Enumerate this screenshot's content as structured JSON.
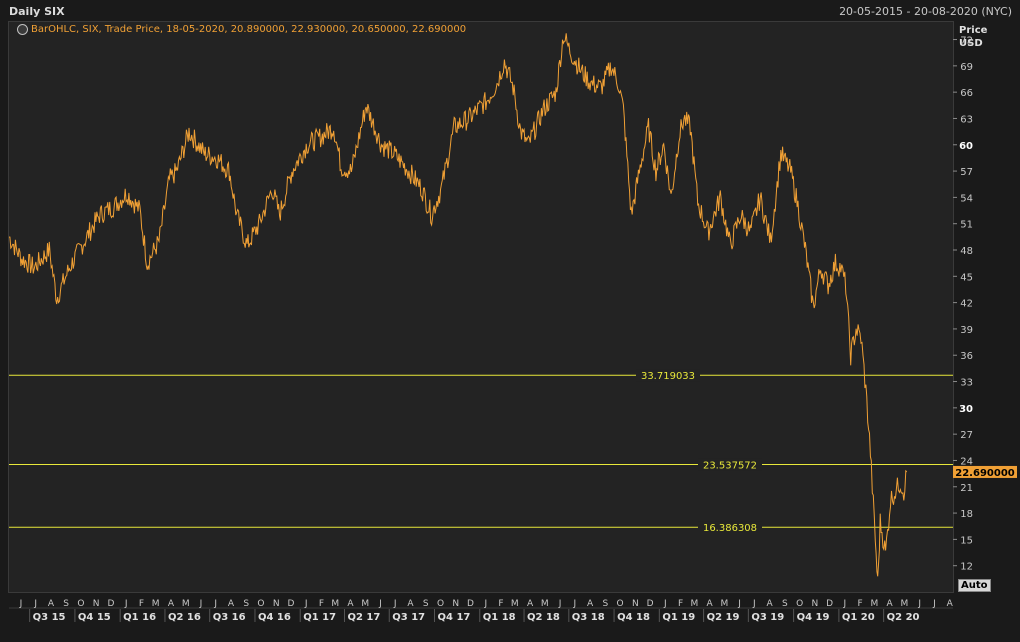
{
  "header": {
    "title": "Daily SIX",
    "date_range": "20-05-2015 - 20-08-2020 (NYC)"
  },
  "legend": {
    "text": "BarOHLC, SIX, Trade Price, 18-05-2020, 20.890000, 22.930000, 20.650000, 22.690000",
    "icon": "globe-icon"
  },
  "y_axis_header": {
    "line1": "Price",
    "line2": "USD"
  },
  "auto_button": "Auto",
  "colors": {
    "line": "#f0a035",
    "hline": "#e8e83a",
    "grid": "#2e2e2e",
    "background": "#232323",
    "last_price_bg": "#f0a035"
  },
  "chart_data": {
    "type": "line",
    "title": "Daily SIX",
    "series": [
      {
        "name": "BarOHLC, SIX, Trade Price",
        "x": [
          "2015-05-20",
          "2015-06-15",
          "2015-07-10",
          "2015-08-10",
          "2015-08-25",
          "2015-09-20",
          "2015-10-20",
          "2015-11-20",
          "2015-12-20",
          "2016-01-15",
          "2016-02-10",
          "2016-02-25",
          "2016-03-20",
          "2016-04-10",
          "2016-04-25",
          "2016-05-20",
          "2016-06-20",
          "2016-07-15",
          "2016-08-10",
          "2016-08-25",
          "2016-09-15",
          "2016-10-10",
          "2016-11-05",
          "2016-11-20",
          "2016-12-15",
          "2017-01-15",
          "2017-02-15",
          "2017-03-10",
          "2017-03-25",
          "2017-04-15",
          "2017-05-15",
          "2017-06-15",
          "2017-07-10",
          "2017-08-10",
          "2017-09-05",
          "2017-09-25",
          "2017-10-15",
          "2017-11-10",
          "2017-12-10",
          "2018-01-15",
          "2018-02-05",
          "2018-02-20",
          "2018-03-10",
          "2018-03-25",
          "2018-04-10",
          "2018-05-10",
          "2018-06-05",
          "2018-06-20",
          "2018-07-05",
          "2018-07-25",
          "2018-08-15",
          "2018-09-05",
          "2018-09-25",
          "2018-10-10",
          "2018-10-20",
          "2018-11-05",
          "2018-11-25",
          "2018-12-10",
          "2018-12-25",
          "2019-01-10",
          "2019-01-25",
          "2019-02-10",
          "2019-02-20",
          "2019-03-05",
          "2019-03-20",
          "2019-04-10",
          "2019-05-05",
          "2019-05-25",
          "2019-06-15",
          "2019-07-05",
          "2019-07-25",
          "2019-08-15",
          "2019-09-05",
          "2019-09-25",
          "2019-10-10",
          "2019-10-25",
          "2019-11-10",
          "2019-11-25",
          "2019-12-10",
          "2019-12-25",
          "2020-01-05",
          "2020-01-15",
          "2020-01-25",
          "2020-02-05",
          "2020-02-15",
          "2020-02-25",
          "2020-03-05",
          "2020-03-15",
          "2020-03-20",
          "2020-03-25",
          "2020-04-05",
          "2020-04-15",
          "2020-04-25",
          "2020-05-05",
          "2020-05-12",
          "2020-05-18"
        ],
        "y": [
          49.5,
          47.0,
          46.0,
          48.0,
          42.5,
          46.0,
          49.0,
          52.0,
          53.0,
          54.5,
          52.5,
          46.5,
          49.0,
          56.0,
          57.0,
          61.5,
          59.0,
          58.5,
          57.0,
          52.0,
          48.5,
          51.0,
          55.0,
          52.0,
          57.0,
          60.0,
          61.0,
          62.0,
          57.5,
          57.0,
          64.5,
          60.0,
          59.0,
          57.0,
          55.0,
          52.0,
          55.0,
          62.0,
          63.0,
          65.0,
          67.0,
          69.5,
          66.5,
          61.5,
          60.0,
          64.0,
          66.0,
          72.5,
          70.5,
          68.5,
          67.0,
          66.5,
          69.0,
          67.0,
          64.0,
          52.0,
          58.0,
          62.0,
          57.0,
          60.0,
          54.0,
          61.0,
          63.0,
          62.0,
          53.5,
          50.0,
          54.0,
          48.5,
          52.0,
          50.0,
          54.0,
          49.0,
          59.0,
          57.0,
          53.0,
          48.0,
          41.5,
          46.0,
          44.0,
          46.5,
          46.0,
          44.0,
          36.0,
          39.0,
          38.0,
          32.0,
          25.0,
          15.0,
          10.0,
          17.0,
          13.5,
          19.5,
          20.5,
          21.5,
          20.5,
          22.69
        ]
      }
    ],
    "horizontal_lines": [
      {
        "value": 33.719033,
        "label": "33.719033"
      },
      {
        "value": 23.537572,
        "label": "23.537572"
      },
      {
        "value": 16.386308,
        "label": "16.386308"
      }
    ],
    "last_price": {
      "value": 22.69,
      "label": "22.690000"
    },
    "ylim": [
      9,
      74
    ],
    "xlim": [
      "2015-05-20",
      "2020-08-20"
    ],
    "y_ticks": [
      12,
      15,
      18,
      21,
      24,
      27,
      30,
      33,
      36,
      39,
      42,
      45,
      48,
      51,
      54,
      57,
      60,
      63,
      66,
      69,
      72
    ],
    "y_bold_ticks": [
      30,
      60
    ],
    "month_labels": [
      {
        "date": "2015-06-01",
        "label": "J"
      },
      {
        "date": "2015-07-01",
        "label": "J"
      },
      {
        "date": "2015-08-01",
        "label": "A"
      },
      {
        "date": "2015-09-01",
        "label": "S"
      },
      {
        "date": "2015-10-01",
        "label": "O"
      },
      {
        "date": "2015-11-01",
        "label": "N"
      },
      {
        "date": "2015-12-01",
        "label": "D"
      },
      {
        "date": "2016-01-01",
        "label": "J"
      },
      {
        "date": "2016-02-01",
        "label": "F"
      },
      {
        "date": "2016-03-01",
        "label": "M"
      },
      {
        "date": "2016-04-01",
        "label": "A"
      },
      {
        "date": "2016-05-01",
        "label": "M"
      },
      {
        "date": "2016-06-01",
        "label": "J"
      },
      {
        "date": "2016-07-01",
        "label": "J"
      },
      {
        "date": "2016-08-01",
        "label": "A"
      },
      {
        "date": "2016-09-01",
        "label": "S"
      },
      {
        "date": "2016-10-01",
        "label": "O"
      },
      {
        "date": "2016-11-01",
        "label": "N"
      },
      {
        "date": "2016-12-01",
        "label": "D"
      },
      {
        "date": "2017-01-01",
        "label": "J"
      },
      {
        "date": "2017-02-01",
        "label": "F"
      },
      {
        "date": "2017-03-01",
        "label": "M"
      },
      {
        "date": "2017-04-01",
        "label": "A"
      },
      {
        "date": "2017-05-01",
        "label": "M"
      },
      {
        "date": "2017-06-01",
        "label": "J"
      },
      {
        "date": "2017-07-01",
        "label": "J"
      },
      {
        "date": "2017-08-01",
        "label": "A"
      },
      {
        "date": "2017-09-01",
        "label": "S"
      },
      {
        "date": "2017-10-01",
        "label": "O"
      },
      {
        "date": "2017-11-01",
        "label": "N"
      },
      {
        "date": "2017-12-01",
        "label": "D"
      },
      {
        "date": "2018-01-01",
        "label": "J"
      },
      {
        "date": "2018-02-01",
        "label": "F"
      },
      {
        "date": "2018-03-01",
        "label": "M"
      },
      {
        "date": "2018-04-01",
        "label": "A"
      },
      {
        "date": "2018-05-01",
        "label": "M"
      },
      {
        "date": "2018-06-01",
        "label": "J"
      },
      {
        "date": "2018-07-01",
        "label": "J"
      },
      {
        "date": "2018-08-01",
        "label": "A"
      },
      {
        "date": "2018-09-01",
        "label": "S"
      },
      {
        "date": "2018-10-01",
        "label": "O"
      },
      {
        "date": "2018-11-01",
        "label": "N"
      },
      {
        "date": "2018-12-01",
        "label": "D"
      },
      {
        "date": "2019-01-01",
        "label": "J"
      },
      {
        "date": "2019-02-01",
        "label": "F"
      },
      {
        "date": "2019-03-01",
        "label": "M"
      },
      {
        "date": "2019-04-01",
        "label": "A"
      },
      {
        "date": "2019-05-01",
        "label": "M"
      },
      {
        "date": "2019-06-01",
        "label": "J"
      },
      {
        "date": "2019-07-01",
        "label": "J"
      },
      {
        "date": "2019-08-01",
        "label": "A"
      },
      {
        "date": "2019-09-01",
        "label": "S"
      },
      {
        "date": "2019-10-01",
        "label": "O"
      },
      {
        "date": "2019-11-01",
        "label": "N"
      },
      {
        "date": "2019-12-01",
        "label": "D"
      },
      {
        "date": "2020-01-01",
        "label": "J"
      },
      {
        "date": "2020-02-01",
        "label": "F"
      },
      {
        "date": "2020-03-01",
        "label": "M"
      },
      {
        "date": "2020-04-01",
        "label": "A"
      },
      {
        "date": "2020-05-01",
        "label": "M"
      },
      {
        "date": "2020-06-01",
        "label": "J"
      },
      {
        "date": "2020-07-01",
        "label": "J"
      },
      {
        "date": "2020-08-01",
        "label": "A"
      }
    ],
    "quarter_labels": [
      {
        "start": "2015-07-01",
        "end": "2015-10-01",
        "label": "Q3 15"
      },
      {
        "start": "2015-10-01",
        "end": "2016-01-01",
        "label": "Q4 15"
      },
      {
        "start": "2016-01-01",
        "end": "2016-04-01",
        "label": "Q1 16"
      },
      {
        "start": "2016-04-01",
        "end": "2016-07-01",
        "label": "Q2 16"
      },
      {
        "start": "2016-07-01",
        "end": "2016-10-01",
        "label": "Q3 16"
      },
      {
        "start": "2016-10-01",
        "end": "2017-01-01",
        "label": "Q4 16"
      },
      {
        "start": "2017-01-01",
        "end": "2017-04-01",
        "label": "Q1 17"
      },
      {
        "start": "2017-04-01",
        "end": "2017-07-01",
        "label": "Q2 17"
      },
      {
        "start": "2017-07-01",
        "end": "2017-10-01",
        "label": "Q3 17"
      },
      {
        "start": "2017-10-01",
        "end": "2018-01-01",
        "label": "Q4 17"
      },
      {
        "start": "2018-01-01",
        "end": "2018-04-01",
        "label": "Q1 18"
      },
      {
        "start": "2018-04-01",
        "end": "2018-07-01",
        "label": "Q2 18"
      },
      {
        "start": "2018-07-01",
        "end": "2018-10-01",
        "label": "Q3 18"
      },
      {
        "start": "2018-10-01",
        "end": "2019-01-01",
        "label": "Q4 18"
      },
      {
        "start": "2019-01-01",
        "end": "2019-04-01",
        "label": "Q1 19"
      },
      {
        "start": "2019-04-01",
        "end": "2019-07-01",
        "label": "Q2 19"
      },
      {
        "start": "2019-07-01",
        "end": "2019-10-01",
        "label": "Q3 19"
      },
      {
        "start": "2019-10-01",
        "end": "2020-01-01",
        "label": "Q4 19"
      },
      {
        "start": "2020-01-01",
        "end": "2020-04-01",
        "label": "Q1 20"
      },
      {
        "start": "2020-04-01",
        "end": "2020-07-01",
        "label": "Q2 20"
      }
    ],
    "grid": false
  }
}
